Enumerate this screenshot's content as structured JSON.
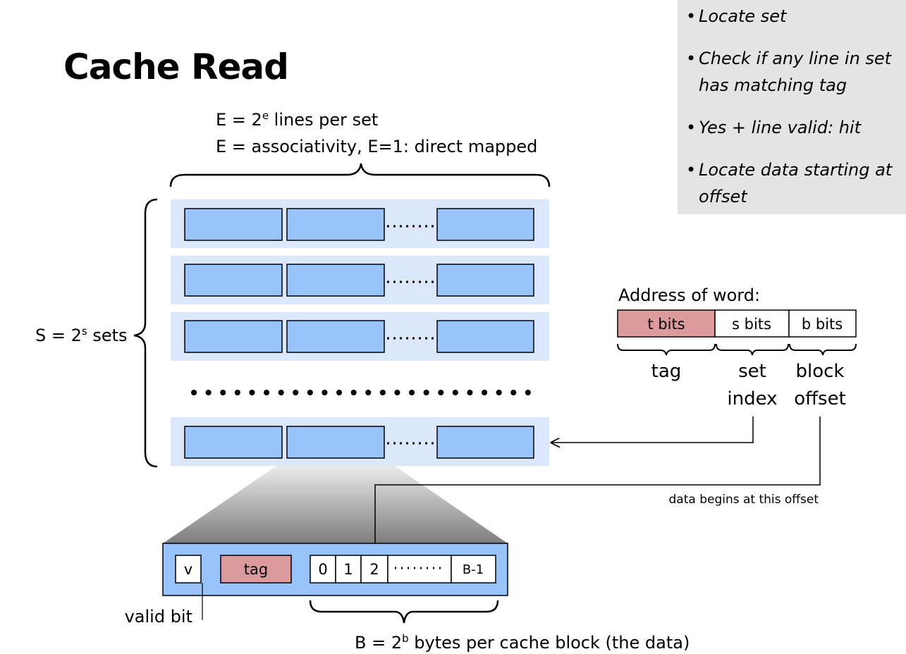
{
  "title": "Cache Read",
  "steps": [
    "Locate set",
    "Check if any line in set has matching tag",
    "Yes + line valid: hit",
    "Locate data starting at offset"
  ],
  "lines_per_set": {
    "prefix": "E = 2",
    "exp": "e",
    "suffix": " lines per set"
  },
  "associativity_note": "E = associativity, E=1: direct mapped",
  "sets_label": {
    "prefix": "S = 2",
    "exp": "s",
    "suffix": " sets"
  },
  "address": {
    "title": "Address of word:",
    "fields": [
      "t bits",
      "s bits",
      "b bits"
    ],
    "tag_label": "tag",
    "set_index_label": [
      "set",
      "index"
    ],
    "block_offset_label": [
      "block",
      "offset"
    ]
  },
  "offset_note": "data begins at this offset",
  "line_detail": {
    "valid": "v",
    "tag": "tag",
    "bytes": [
      "0",
      "1",
      "2",
      "B-1"
    ],
    "valid_bit_label": "valid bit"
  },
  "block_size_label": {
    "prefix": "B = 2",
    "exp": "b",
    "suffix": " bytes per cache block (the data)"
  },
  "colors": {
    "set_background": "#dbe8fb",
    "line_fill": "#99c3fb",
    "tag_fill": "#db9a9b",
    "notes_background": "#e4e4e4"
  }
}
